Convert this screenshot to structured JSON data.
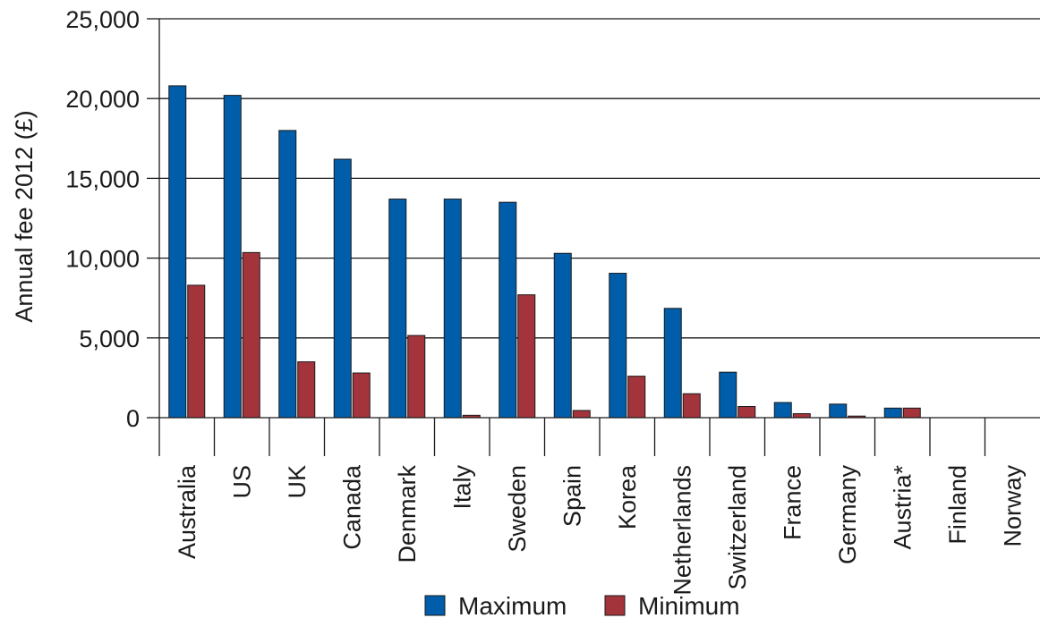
{
  "chart_data": {
    "type": "bar",
    "title": "",
    "xlabel": "",
    "ylabel": "Annual fee 2012 (£)",
    "ylim": [
      0,
      25000
    ],
    "yticks": [
      "0",
      "5,000",
      "10,000",
      "15,000",
      "20,000",
      "25,000"
    ],
    "ytick_values": [
      0,
      5000,
      10000,
      15000,
      20000,
      25000
    ],
    "grid": true,
    "legend_position": "bottom",
    "categories": [
      "Australia",
      "US",
      "UK",
      "Canada",
      "Denmark",
      "Italy",
      "Sweden",
      "Spain",
      "Korea",
      "Netherlands",
      "Switzerland",
      "France",
      "Germany",
      "Austria*",
      "Finland",
      "Norway"
    ],
    "series": [
      {
        "name": "Maximum",
        "color": "#005daa",
        "values": [
          20800,
          20200,
          18000,
          16200,
          13700,
          13700,
          13500,
          10300,
          9050,
          6850,
          2850,
          950,
          850,
          600,
          0,
          0
        ]
      },
      {
        "name": "Minimum",
        "color": "#a3343c",
        "values": [
          8300,
          10350,
          3500,
          2800,
          5150,
          150,
          7700,
          450,
          2600,
          1500,
          700,
          250,
          100,
          600,
          0,
          0
        ]
      }
    ]
  }
}
